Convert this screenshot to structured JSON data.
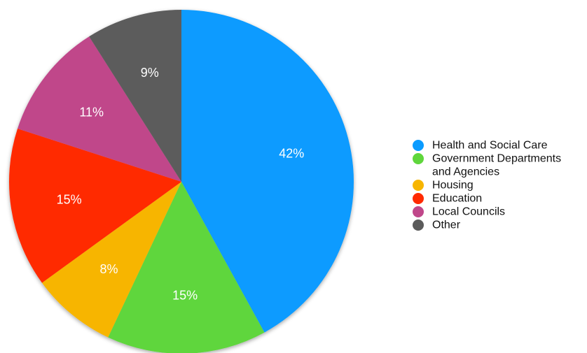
{
  "chart_data": {
    "type": "pie",
    "categories": [
      "Health and Social Care",
      "Government Departments and Agencies",
      "Housing",
      "Education",
      "Local Councils",
      "Other"
    ],
    "values": [
      42,
      15,
      8,
      15,
      11,
      9
    ],
    "value_labels": [
      "42%",
      "15%",
      "8%",
      "15%",
      "11%",
      "9%"
    ],
    "legend_lines": [
      [
        "Health and Social Care"
      ],
      [
        "Government Departments",
        "and Agencies"
      ],
      [
        "Housing"
      ],
      [
        "Education"
      ],
      [
        "Local Councils"
      ],
      [
        "Other"
      ]
    ],
    "colors": [
      "#0a9bff",
      "#5fd63c",
      "#f7b500",
      "#ff2a00",
      "#c0478a",
      "#5b5b5b"
    ],
    "start_angle_deg": 0,
    "direction": "clockwise",
    "legend_position": "right",
    "title": ""
  }
}
